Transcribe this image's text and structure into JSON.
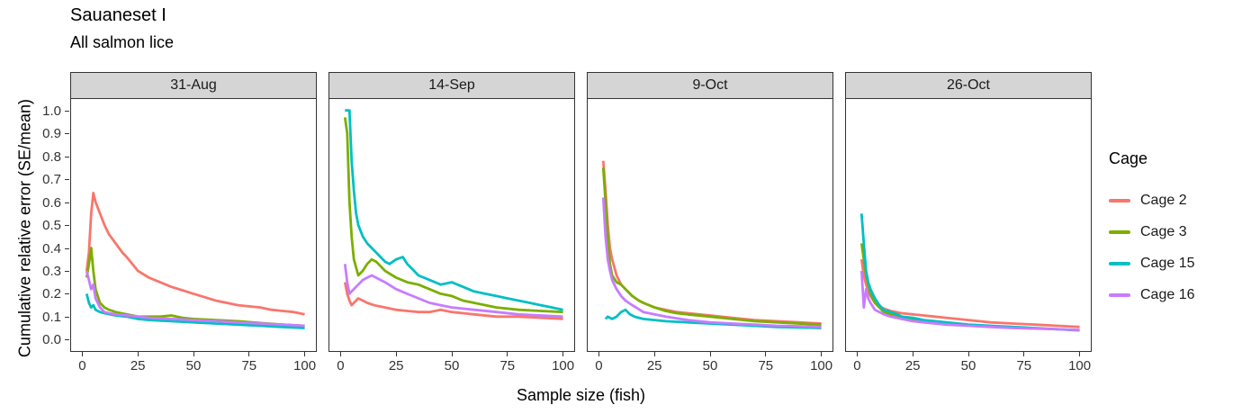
{
  "title": "Sauaneset I",
  "subtitle": "All salmon lice",
  "y_axis": {
    "label": "Cumulative relative error (SE/mean)",
    "tick_labels": [
      "0.0",
      "0.1",
      "0.2",
      "0.3",
      "0.4",
      "0.5",
      "0.6",
      "0.7",
      "0.8",
      "0.9",
      "1.0"
    ]
  },
  "x_axis": {
    "label": "Sample size (fish)",
    "ticks": [
      0,
      25,
      50,
      75,
      100
    ]
  },
  "legend": {
    "title": "Cage",
    "entries": [
      {
        "label": "Cage 2",
        "color": "#F8766D"
      },
      {
        "label": "Cage 3",
        "color": "#7CAE00"
      },
      {
        "label": "Cage 15",
        "color": "#00BFC4"
      },
      {
        "label": "Cage 16",
        "color": "#C77CFF"
      }
    ]
  },
  "chart_data": {
    "type": "line",
    "title": "Sauaneset I",
    "subtitle": "All salmon lice",
    "xlabel": "Sample size (fish)",
    "ylabel": "Cumulative relative error (SE/mean)",
    "xlim": [
      0,
      100
    ],
    "ylim": [
      0,
      1.0
    ],
    "grid": false,
    "legend_position": "right",
    "facets": [
      {
        "label": "31-Aug",
        "series": [
          {
            "name": "Cage 2",
            "color": "#F8766D",
            "x": [
              2,
              3,
              4,
              5,
              6,
              8,
              10,
              12,
              15,
              18,
              20,
              25,
              30,
              35,
              40,
              45,
              50,
              55,
              60,
              65,
              70,
              75,
              80,
              85,
              90,
              95,
              100
            ],
            "y": [
              0.3,
              0.38,
              0.55,
              0.64,
              0.6,
              0.55,
              0.5,
              0.46,
              0.42,
              0.38,
              0.36,
              0.3,
              0.27,
              0.25,
              0.23,
              0.215,
              0.2,
              0.185,
              0.17,
              0.16,
              0.15,
              0.145,
              0.14,
              0.13,
              0.125,
              0.12,
              0.11
            ]
          },
          {
            "name": "Cage 3",
            "color": "#7CAE00",
            "x": [
              2,
              3,
              4,
              5,
              6,
              8,
              10,
              12,
              15,
              20,
              25,
              30,
              35,
              40,
              45,
              50,
              60,
              70,
              80,
              90,
              100
            ],
            "y": [
              0.27,
              0.33,
              0.4,
              0.3,
              0.22,
              0.16,
              0.14,
              0.13,
              0.12,
              0.11,
              0.1,
              0.1,
              0.1,
              0.105,
              0.095,
              0.09,
              0.085,
              0.08,
              0.072,
              0.065,
              0.06
            ]
          },
          {
            "name": "Cage 15",
            "color": "#00BFC4",
            "x": [
              2,
              3,
              4,
              5,
              6,
              8,
              10,
              15,
              20,
              25,
              30,
              40,
              50,
              60,
              70,
              80,
              90,
              100
            ],
            "y": [
              0.2,
              0.16,
              0.14,
              0.15,
              0.13,
              0.12,
              0.115,
              0.105,
              0.1,
              0.09,
              0.085,
              0.08,
              0.075,
              0.07,
              0.065,
              0.06,
              0.055,
              0.05
            ]
          },
          {
            "name": "Cage 16",
            "color": "#C77CFF",
            "x": [
              2,
              3,
              4,
              5,
              6,
              8,
              10,
              12,
              15,
              20,
              25,
              30,
              40,
              50,
              60,
              70,
              80,
              90,
              100
            ],
            "y": [
              0.3,
              0.26,
              0.22,
              0.24,
              0.18,
              0.14,
              0.12,
              0.115,
              0.11,
              0.105,
              0.1,
              0.095,
              0.09,
              0.085,
              0.08,
              0.075,
              0.07,
              0.065,
              0.06
            ]
          }
        ]
      },
      {
        "label": "14-Sep",
        "series": [
          {
            "name": "Cage 2",
            "color": "#F8766D",
            "x": [
              2,
              3,
              4,
              5,
              6,
              8,
              10,
              12,
              15,
              20,
              25,
              30,
              35,
              40,
              45,
              50,
              55,
              60,
              70,
              80,
              90,
              100
            ],
            "y": [
              0.25,
              0.2,
              0.17,
              0.15,
              0.16,
              0.18,
              0.17,
              0.16,
              0.15,
              0.14,
              0.13,
              0.125,
              0.12,
              0.12,
              0.13,
              0.12,
              0.115,
              0.11,
              0.1,
              0.1,
              0.095,
              0.09
            ]
          },
          {
            "name": "Cage 3",
            "color": "#7CAE00",
            "x": [
              2,
              3,
              4,
              5,
              6,
              8,
              10,
              12,
              14,
              16,
              18,
              20,
              25,
              30,
              35,
              40,
              45,
              50,
              55,
              60,
              70,
              80,
              90,
              100
            ],
            "y": [
              0.97,
              0.9,
              0.6,
              0.45,
              0.35,
              0.28,
              0.3,
              0.33,
              0.35,
              0.34,
              0.32,
              0.3,
              0.27,
              0.25,
              0.24,
              0.22,
              0.2,
              0.19,
              0.17,
              0.16,
              0.14,
              0.13,
              0.125,
              0.12
            ]
          },
          {
            "name": "Cage 15",
            "color": "#00BFC4",
            "x": [
              2,
              3,
              4,
              5,
              6,
              7,
              8,
              10,
              12,
              14,
              16,
              18,
              20,
              22,
              25,
              28,
              30,
              33,
              35,
              40,
              45,
              50,
              55,
              60,
              65,
              70,
              75,
              80,
              85,
              90,
              95,
              100
            ],
            "y": [
              1.0,
              1.0,
              1.0,
              0.78,
              0.65,
              0.55,
              0.5,
              0.45,
              0.42,
              0.4,
              0.38,
              0.36,
              0.34,
              0.33,
              0.35,
              0.36,
              0.33,
              0.3,
              0.28,
              0.26,
              0.24,
              0.25,
              0.23,
              0.21,
              0.2,
              0.19,
              0.18,
              0.17,
              0.16,
              0.15,
              0.14,
              0.13
            ]
          },
          {
            "name": "Cage 16",
            "color": "#C77CFF",
            "x": [
              2,
              3,
              4,
              5,
              6,
              8,
              10,
              12,
              14,
              16,
              18,
              20,
              25,
              30,
              35,
              40,
              45,
              50,
              60,
              70,
              80,
              90,
              100
            ],
            "y": [
              0.33,
              0.25,
              0.2,
              0.21,
              0.22,
              0.24,
              0.26,
              0.27,
              0.28,
              0.27,
              0.26,
              0.25,
              0.22,
              0.2,
              0.18,
              0.16,
              0.15,
              0.14,
              0.13,
              0.12,
              0.11,
              0.105,
              0.1
            ]
          }
        ]
      },
      {
        "label": "9-Oct",
        "series": [
          {
            "name": "Cage 2",
            "color": "#F8766D",
            "x": [
              2,
              3,
              4,
              5,
              6,
              8,
              10,
              12,
              15,
              18,
              20,
              25,
              30,
              35,
              40,
              45,
              50,
              60,
              70,
              80,
              90,
              100
            ],
            "y": [
              0.78,
              0.65,
              0.5,
              0.4,
              0.35,
              0.28,
              0.24,
              0.22,
              0.19,
              0.17,
              0.16,
              0.14,
              0.13,
              0.12,
              0.115,
              0.11,
              0.105,
              0.095,
              0.085,
              0.08,
              0.075,
              0.07
            ]
          },
          {
            "name": "Cage 3",
            "color": "#7CAE00",
            "x": [
              2,
              3,
              4,
              5,
              6,
              8,
              10,
              12,
              15,
              18,
              20,
              25,
              30,
              35,
              40,
              50,
              60,
              70,
              80,
              90,
              100
            ],
            "y": [
              0.75,
              0.6,
              0.45,
              0.33,
              0.28,
              0.25,
              0.24,
              0.22,
              0.19,
              0.17,
              0.16,
              0.14,
              0.125,
              0.115,
              0.11,
              0.1,
              0.09,
              0.08,
              0.075,
              0.07,
              0.065
            ]
          },
          {
            "name": "Cage 15",
            "color": "#00BFC4",
            "x": [
              3,
              4,
              5,
              6,
              8,
              10,
              12,
              14,
              16,
              18,
              20,
              25,
              30,
              40,
              50,
              60,
              70,
              80,
              90,
              100
            ],
            "y": [
              0.09,
              0.1,
              0.095,
              0.09,
              0.1,
              0.12,
              0.13,
              0.11,
              0.1,
              0.095,
              0.09,
              0.085,
              0.08,
              0.075,
              0.07,
              0.065,
              0.06,
              0.055,
              0.053,
              0.05
            ]
          },
          {
            "name": "Cage 16",
            "color": "#C77CFF",
            "x": [
              2,
              3,
              4,
              5,
              6,
              8,
              10,
              12,
              15,
              20,
              25,
              30,
              40,
              50,
              60,
              70,
              80,
              90,
              100
            ],
            "y": [
              0.62,
              0.45,
              0.35,
              0.3,
              0.26,
              0.22,
              0.19,
              0.17,
              0.15,
              0.12,
              0.11,
              0.1,
              0.085,
              0.075,
              0.07,
              0.065,
              0.06,
              0.058,
              0.055
            ]
          }
        ]
      },
      {
        "label": "26-Oct",
        "series": [
          {
            "name": "Cage 2",
            "color": "#F8766D",
            "x": [
              2,
              3,
              4,
              5,
              6,
              8,
              10,
              12,
              15,
              20,
              25,
              30,
              35,
              40,
              45,
              50,
              60,
              70,
              80,
              90,
              100
            ],
            "y": [
              0.35,
              0.28,
              0.24,
              0.21,
              0.19,
              0.16,
              0.145,
              0.135,
              0.125,
              0.115,
              0.11,
              0.105,
              0.1,
              0.095,
              0.09,
              0.085,
              0.075,
              0.07,
              0.065,
              0.06,
              0.055
            ]
          },
          {
            "name": "Cage 3",
            "color": "#7CAE00",
            "x": [
              2,
              3,
              4,
              5,
              6,
              8,
              10,
              12,
              15,
              18,
              20,
              25,
              30,
              35,
              40
            ],
            "y": [
              0.42,
              0.35,
              0.28,
              0.24,
              0.2,
              0.16,
              0.14,
              0.12,
              0.11,
              0.1,
              0.095,
              0.085,
              0.08,
              0.075,
              0.07
            ]
          },
          {
            "name": "Cage 15",
            "color": "#00BFC4",
            "x": [
              2,
              3,
              4,
              5,
              6,
              8,
              10,
              12,
              15,
              18,
              20,
              25,
              30,
              35,
              40,
              50,
              60,
              70,
              80,
              90,
              100
            ],
            "y": [
              0.55,
              0.42,
              0.3,
              0.25,
              0.22,
              0.18,
              0.15,
              0.13,
              0.12,
              0.11,
              0.1,
              0.095,
              0.085,
              0.08,
              0.075,
              0.065,
              0.06,
              0.055,
              0.05,
              0.045,
              0.04
            ]
          },
          {
            "name": "Cage 16",
            "color": "#C77CFF",
            "x": [
              2,
              3,
              4,
              5,
              6,
              8,
              10,
              12,
              15,
              20,
              25,
              30,
              40,
              50,
              60,
              70,
              80,
              90,
              100
            ],
            "y": [
              0.3,
              0.14,
              0.22,
              0.18,
              0.16,
              0.13,
              0.12,
              0.11,
              0.1,
              0.09,
              0.08,
              0.075,
              0.065,
              0.06,
              0.055,
              0.05,
              0.048,
              0.045,
              0.042
            ]
          }
        ]
      }
    ]
  }
}
